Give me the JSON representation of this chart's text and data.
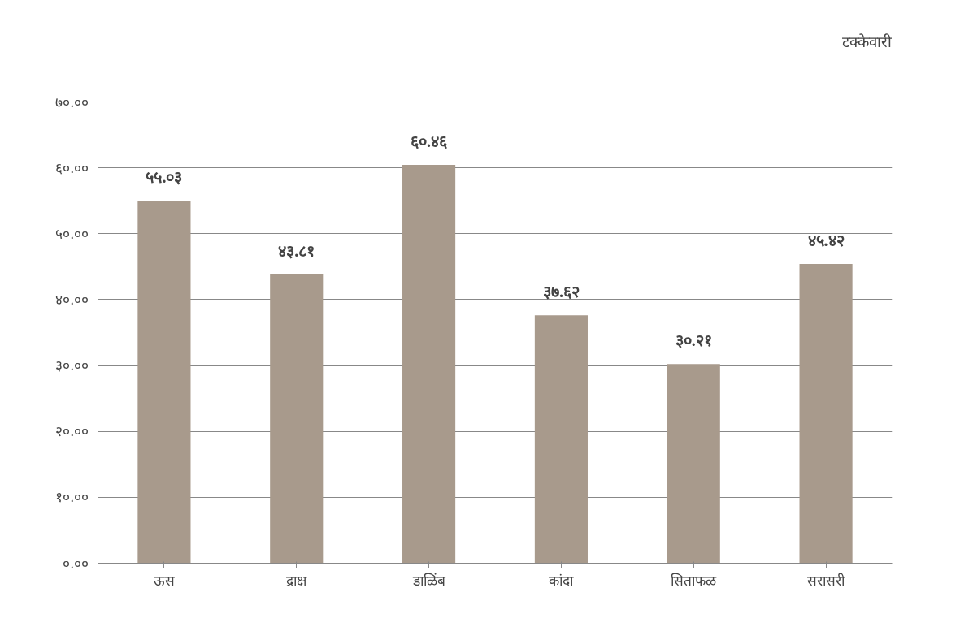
{
  "chart_data": {
    "type": "bar",
    "categories": [
      "ऊस",
      "द्राक्ष",
      "डाळिंब",
      "कांदा",
      "सिताफळ",
      "सरासरी"
    ],
    "series": [
      {
        "name": "टक्केवारी",
        "color": "#a89a8c",
        "values": [
          55.03,
          43.81,
          60.46,
          37.62,
          30.21,
          45.42
        ],
        "value_labels": [
          "५५.०३",
          "४३.८१",
          "६०.४६",
          "३७.६२",
          "३०.२१",
          "४५.४२"
        ]
      }
    ],
    "ylim": [
      0,
      70
    ],
    "yticks": [
      {
        "value": 0,
        "label": "०.००"
      },
      {
        "value": 10,
        "label": "१०.००"
      },
      {
        "value": 20,
        "label": "२०.००"
      },
      {
        "value": 30,
        "label": "३०.००"
      },
      {
        "value": 40,
        "label": "४०.००"
      },
      {
        "value": 50,
        "label": "५०.००"
      },
      {
        "value": 60,
        "label": "६०.००"
      },
      {
        "value": 70,
        "label": "७०.००"
      }
    ],
    "grid": "y",
    "legend": "top right"
  }
}
